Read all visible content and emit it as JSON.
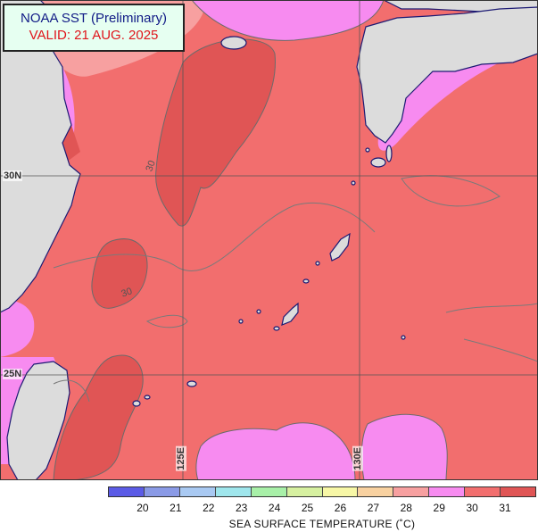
{
  "title": {
    "line1": "NOAA SST (Preliminary)",
    "line2": "VALID: 21 AUG. 2025"
  },
  "latitude_labels": [
    "30N",
    "25N"
  ],
  "longitude_labels": [
    "125E",
    "130E"
  ],
  "contour_labels": [
    "30",
    "30"
  ],
  "legend": {
    "ticks": [
      "20",
      "21",
      "22",
      "23",
      "24",
      "25",
      "26",
      "27",
      "28",
      "29",
      "30",
      "31"
    ],
    "colors": [
      "#5b5be6",
      "#8a9ae6",
      "#a9c9f2",
      "#9fe6ec",
      "#a8f0a8",
      "#d6f0a0",
      "#f7f7a6",
      "#f8d1a0",
      "#f7a0a0",
      "#f78bf0",
      "#f26e6e",
      "#e05555"
    ],
    "caption": "SEA SURFACE TEMPERATURE (˚C)"
  },
  "map_colors": {
    "water_30": "#f26e6e",
    "water_31": "#e05555",
    "water_28": "#f7a0a0",
    "water_29": "#f78bf0",
    "land": "#dcdcdc",
    "coast": "#1c1a73",
    "grid": "#555555"
  }
}
